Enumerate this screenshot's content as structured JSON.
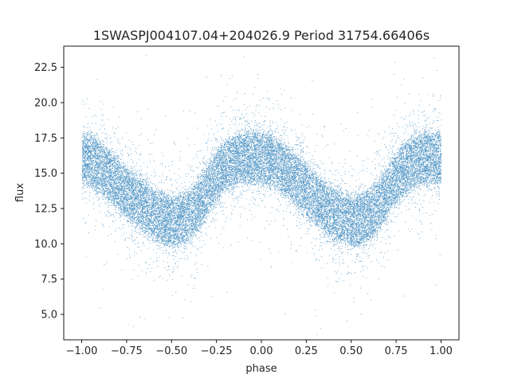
{
  "chart_data": {
    "type": "scatter",
    "title": "1SWASPJ004107.04+204026.9 Period 31754.66406s",
    "xlabel": "phase",
    "ylabel": "flux",
    "xlim": [
      -1.1,
      1.1
    ],
    "ylim": [
      3.2,
      24.0
    ],
    "x_ticks": [
      -1.0,
      -0.75,
      -0.5,
      -0.25,
      0.0,
      0.25,
      0.5,
      0.75,
      1.0
    ],
    "x_tick_labels": [
      "−1.00",
      "−0.75",
      "−0.50",
      "−0.25",
      "0.00",
      "0.25",
      "0.50",
      "0.75",
      "1.00"
    ],
    "y_ticks": [
      5.0,
      7.5,
      10.0,
      12.5,
      15.0,
      17.5,
      20.0,
      22.5
    ],
    "y_tick_labels": [
      "5.0",
      "7.5",
      "10.0",
      "12.5",
      "15.0",
      "17.5",
      "20.0",
      "22.5"
    ],
    "grid": false,
    "marker_color": "#1f77b4",
    "series": [
      {
        "phase": [
          -1.0,
          -0.95,
          -0.9,
          -0.85,
          -0.8,
          -0.75,
          -0.7,
          -0.65,
          -0.6,
          -0.55,
          -0.5,
          -0.45,
          -0.4,
          -0.35,
          -0.3,
          -0.25,
          -0.2,
          -0.15,
          -0.1,
          -0.05,
          0.0,
          0.05,
          0.1,
          0.15,
          0.2,
          0.25,
          0.3,
          0.35,
          0.4,
          0.45,
          0.5,
          0.55,
          0.6,
          0.65,
          0.7,
          0.75,
          0.8,
          0.85,
          0.9,
          0.95,
          1.0
        ],
        "flux_median": [
          16.0,
          15.9,
          15.4,
          14.8,
          14.2,
          13.6,
          13.1,
          12.6,
          12.1,
          11.8,
          11.6,
          11.7,
          12.0,
          12.8,
          13.8,
          14.8,
          15.5,
          15.9,
          16.1,
          16.1,
          16.0,
          15.9,
          15.5,
          15.0,
          14.4,
          13.8,
          13.2,
          12.6,
          12.1,
          11.8,
          11.6,
          11.7,
          12.0,
          12.7,
          13.7,
          14.6,
          15.3,
          15.8,
          16.0,
          16.1,
          16.0
        ],
        "flux_spread": 1.7,
        "n_points": 26000
      }
    ]
  }
}
